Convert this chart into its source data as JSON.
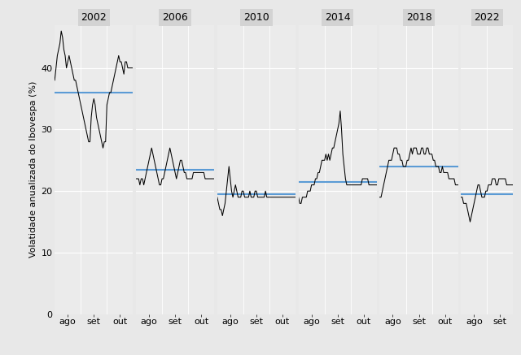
{
  "panels": [
    {
      "year": "2002",
      "x_labels": [
        "ago",
        "set",
        "out"
      ],
      "n_months": 3,
      "mean": 36.0,
      "data_y": [
        38,
        40,
        42,
        43,
        44,
        46,
        45,
        43,
        42,
        40,
        41,
        42,
        41,
        40,
        39,
        38,
        38,
        37,
        36,
        35,
        34,
        33,
        32,
        31,
        30,
        29,
        28,
        28,
        32,
        34,
        35,
        34,
        32,
        31,
        30,
        29,
        28,
        27,
        28,
        28,
        34,
        35,
        36,
        36,
        37,
        38,
        39,
        40,
        41,
        42,
        41,
        41,
        40,
        39,
        41,
        41,
        40,
        40,
        40,
        40,
        40
      ]
    },
    {
      "year": "2006",
      "x_labels": [
        "ago",
        "set",
        "out"
      ],
      "n_months": 3,
      "mean": 23.5,
      "data_y": [
        22,
        22,
        22,
        21,
        22,
        22,
        21,
        22,
        23,
        24,
        25,
        26,
        27,
        26,
        25,
        24,
        23,
        22,
        21,
        21,
        22,
        22,
        23,
        24,
        25,
        26,
        27,
        26,
        25,
        24,
        23,
        22,
        23,
        24,
        25,
        25,
        24,
        23,
        23,
        22,
        22,
        22,
        22,
        22,
        23,
        23,
        23,
        23,
        23,
        23,
        23,
        23,
        23,
        22,
        22,
        22,
        22,
        22,
        22,
        22,
        22
      ]
    },
    {
      "year": "2010",
      "x_labels": [
        "ago",
        "set",
        "out"
      ],
      "n_months": 3,
      "mean": 19.5,
      "data_y": [
        19,
        18,
        17,
        17,
        16,
        17,
        18,
        20,
        22,
        24,
        22,
        20,
        19,
        20,
        21,
        20,
        19,
        19,
        19,
        20,
        20,
        19,
        19,
        19,
        19,
        20,
        19,
        19,
        19,
        20,
        20,
        19,
        19,
        19,
        19,
        19,
        19,
        20,
        19,
        19,
        19,
        19,
        19,
        19,
        19,
        19,
        19,
        19,
        19,
        19,
        19,
        19,
        19,
        19,
        19,
        19,
        19,
        19,
        19,
        19,
        19
      ]
    },
    {
      "year": "2014",
      "x_labels": [
        "ago",
        "set",
        "out"
      ],
      "n_months": 3,
      "mean": 21.5,
      "data_y": [
        19,
        18,
        18,
        19,
        19,
        19,
        19,
        20,
        20,
        20,
        21,
        21,
        21,
        22,
        22,
        23,
        23,
        24,
        25,
        25,
        25,
        26,
        25,
        26,
        25,
        26,
        27,
        27,
        28,
        29,
        30,
        31,
        33,
        30,
        26,
        24,
        22,
        21,
        21,
        21,
        21,
        21,
        21,
        21,
        21,
        21,
        21,
        21,
        21,
        22,
        22,
        22,
        22,
        22,
        21,
        21,
        21,
        21,
        21,
        21,
        21
      ]
    },
    {
      "year": "2018",
      "x_labels": [
        "ago",
        "set",
        "out"
      ],
      "n_months": 3,
      "mean": 24.0,
      "data_y": [
        19,
        19,
        20,
        21,
        22,
        23,
        24,
        25,
        25,
        25,
        26,
        27,
        27,
        27,
        26,
        26,
        25,
        25,
        24,
        24,
        24,
        25,
        25,
        26,
        27,
        26,
        27,
        27,
        27,
        26,
        26,
        26,
        27,
        27,
        26,
        26,
        27,
        27,
        26,
        26,
        26,
        25,
        25,
        24,
        24,
        24,
        23,
        23,
        24,
        23,
        23,
        23,
        23,
        22,
        22,
        22,
        22,
        22,
        21,
        21,
        21
      ]
    },
    {
      "year": "2022",
      "x_labels": [
        "ago",
        "set"
      ],
      "n_months": 2,
      "mean": 19.5,
      "data_y": [
        19,
        19,
        18,
        18,
        18,
        17,
        16,
        15,
        16,
        17,
        18,
        19,
        20,
        21,
        21,
        20,
        19,
        19,
        19,
        20,
        20,
        21,
        21,
        21,
        22,
        22,
        22,
        21,
        21,
        22,
        22,
        22,
        22,
        22,
        22,
        21,
        21,
        21,
        21,
        21,
        21
      ]
    }
  ],
  "ylabel": "Volatidade anualizada do Ibovespa (%)",
  "yticks": [
    0,
    10,
    20,
    30,
    40
  ],
  "ylim": [
    0,
    47
  ],
  "bg_color": "#e8e8e8",
  "panel_bg": "#ebebeb",
  "line_color": "black",
  "mean_line_color": "#5b9bd5",
  "grid_color": "white",
  "strip_bg": "#d3d3d3",
  "font_size": 8,
  "pts_per_month": 20
}
